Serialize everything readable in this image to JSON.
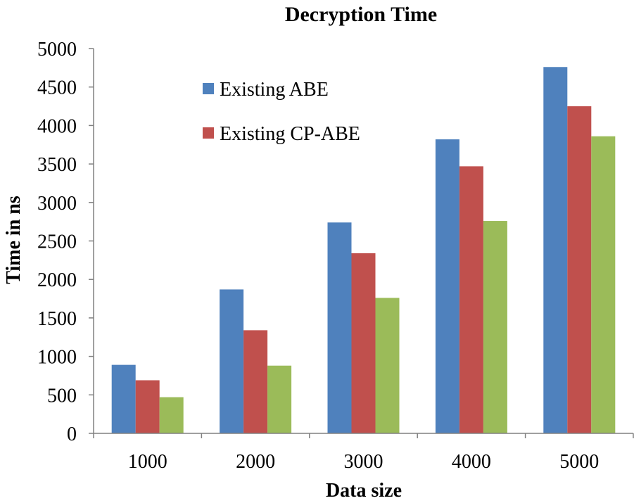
{
  "chart_data": {
    "type": "bar",
    "title": "Decryption Time",
    "xlabel": "Data size",
    "ylabel": "Time in ns",
    "categories": [
      "1000",
      "2000",
      "3000",
      "4000",
      "5000"
    ],
    "ylim": [
      0,
      5000
    ],
    "yticks": [
      0,
      500,
      1000,
      1500,
      2000,
      2500,
      3000,
      3500,
      4000,
      4500,
      5000
    ],
    "grid": false,
    "legend_position": "top-left",
    "series": [
      {
        "name": "Existing ABE",
        "color": "#4F81BD",
        "values": [
          890,
          1870,
          2740,
          3820,
          4760
        ]
      },
      {
        "name": "Existing CP-ABE",
        "color": "#C0504D",
        "values": [
          690,
          1340,
          2340,
          3470,
          4250
        ]
      },
      {
        "name": "",
        "color": "#9BBB59",
        "values": [
          470,
          880,
          1760,
          2760,
          3860
        ],
        "show_in_legend": false
      }
    ]
  }
}
